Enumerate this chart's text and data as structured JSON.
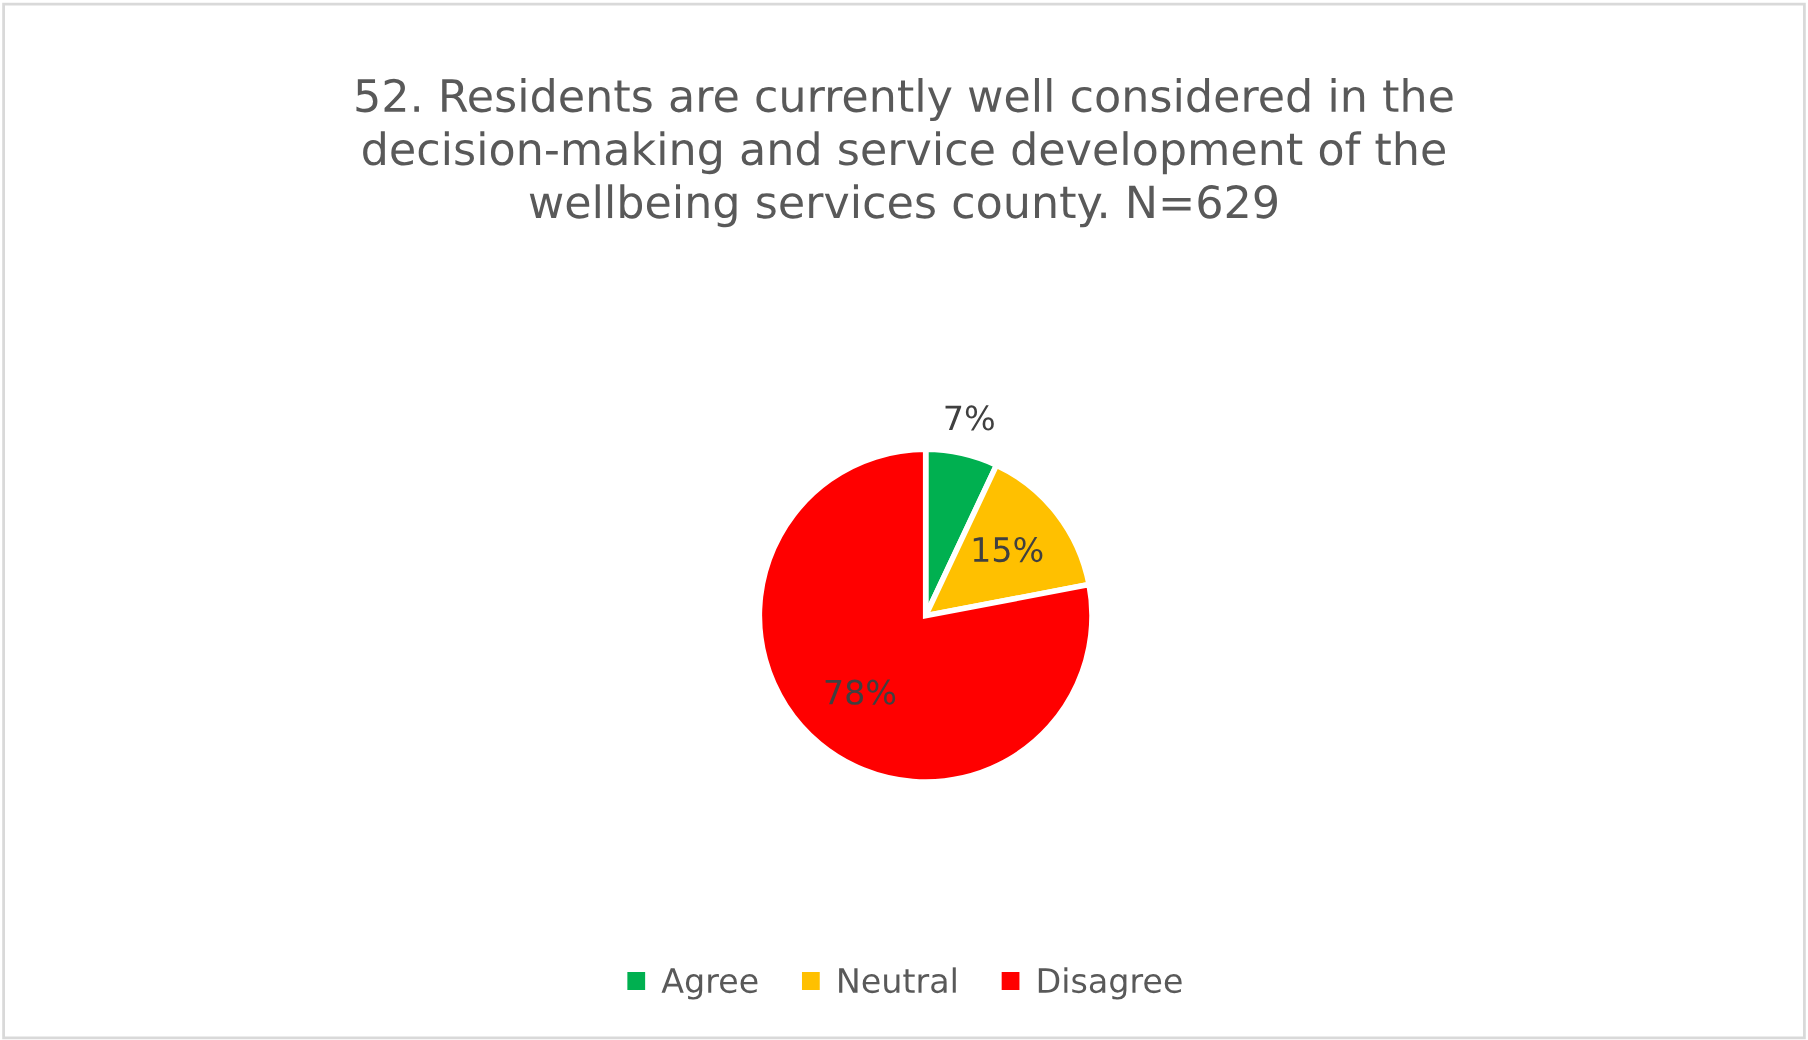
{
  "chart_data": {
    "type": "pie",
    "title": "52. Residents are currently well considered in the\ndecision-making and service development of the\nwellbeing services county. N=629",
    "categories": [
      "Agree",
      "Neutral",
      "Disagree"
    ],
    "values": [
      7,
      15,
      78
    ],
    "colors": [
      "#00b050",
      "#ffc000",
      "#ff0000"
    ],
    "value_labels": [
      "7%",
      "15%",
      "78%"
    ],
    "legend": "bottom"
  }
}
